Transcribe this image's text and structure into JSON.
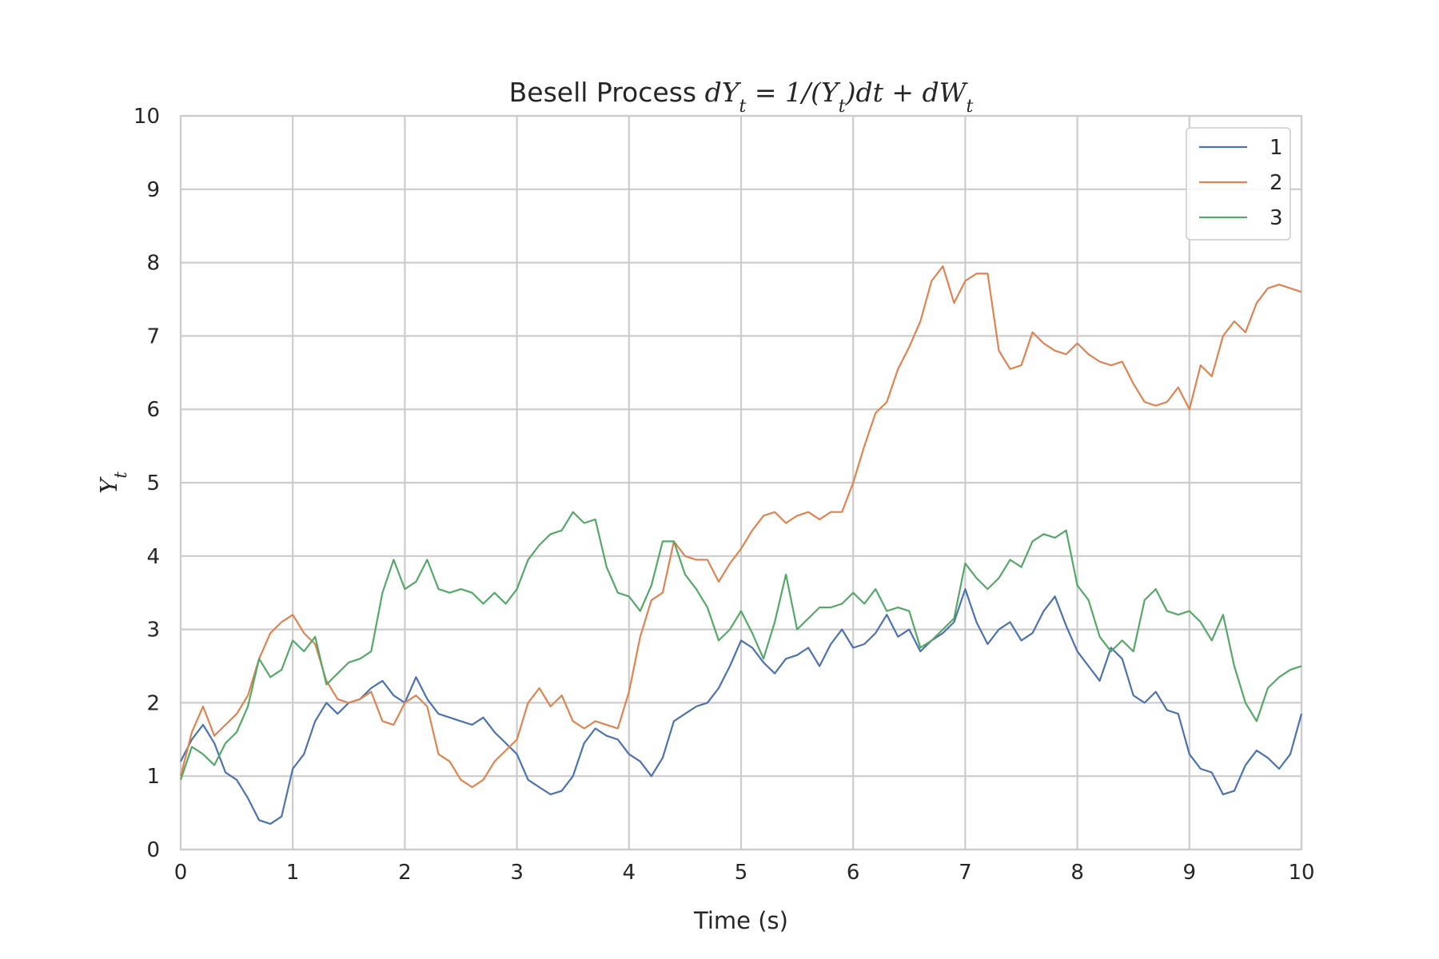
{
  "chart_data": {
    "type": "line",
    "title": {
      "plain": "Besell Process ",
      "math": "dY",
      "math_sub": "t",
      "math_rest": " = 1/(Y",
      "math_sub2": "t",
      "math_rest2": ")dt + dW",
      "math_sub3": "t"
    },
    "xlabel": "Time (s)",
    "ylabel": "Y",
    "ylabel_sub": "t",
    "xlim": [
      0,
      10
    ],
    "ylim": [
      0,
      10
    ],
    "xticks": [
      "0",
      "1",
      "2",
      "3",
      "4",
      "5",
      "6",
      "7",
      "8",
      "9",
      "10"
    ],
    "yticks": [
      "0",
      "1",
      "2",
      "3",
      "4",
      "5",
      "6",
      "7",
      "8",
      "9",
      "10"
    ],
    "grid": true,
    "legend_position": "top-right",
    "series": [
      {
        "name": "1",
        "color": "#4c72b0",
        "x": [
          0,
          0.1,
          0.2,
          0.3,
          0.4,
          0.5,
          0.6,
          0.7,
          0.8,
          0.9,
          1.0,
          1.1,
          1.2,
          1.3,
          1.4,
          1.5,
          1.6,
          1.7,
          1.8,
          1.9,
          2.0,
          2.1,
          2.2,
          2.3,
          2.4,
          2.5,
          2.6,
          2.7,
          2.8,
          2.9,
          3.0,
          3.1,
          3.2,
          3.3,
          3.4,
          3.5,
          3.6,
          3.7,
          3.8,
          3.9,
          4.0,
          4.1,
          4.2,
          4.3,
          4.4,
          4.5,
          4.6,
          4.7,
          4.8,
          4.9,
          5.0,
          5.1,
          5.2,
          5.3,
          5.4,
          5.5,
          5.6,
          5.7,
          5.8,
          5.9,
          6.0,
          6.1,
          6.2,
          6.3,
          6.4,
          6.5,
          6.6,
          6.7,
          6.8,
          6.9,
          7.0,
          7.1,
          7.2,
          7.3,
          7.4,
          7.5,
          7.6,
          7.7,
          7.8,
          7.9,
          8.0,
          8.1,
          8.2,
          8.3,
          8.4,
          8.5,
          8.6,
          8.7,
          8.8,
          8.9,
          9.0,
          9.1,
          9.2,
          9.3,
          9.4,
          9.5,
          9.6,
          9.7,
          9.8,
          9.9,
          10.0
        ],
        "y": [
          1.2,
          1.5,
          1.7,
          1.45,
          1.05,
          0.95,
          0.7,
          0.4,
          0.35,
          0.45,
          1.1,
          1.3,
          1.75,
          2.0,
          1.85,
          2.0,
          2.05,
          2.2,
          2.3,
          2.1,
          2.0,
          2.35,
          2.05,
          1.85,
          1.8,
          1.75,
          1.7,
          1.8,
          1.6,
          1.45,
          1.3,
          0.95,
          0.85,
          0.75,
          0.8,
          1.0,
          1.45,
          1.65,
          1.55,
          1.5,
          1.3,
          1.2,
          1.0,
          1.25,
          1.75,
          1.85,
          1.95,
          2.0,
          2.2,
          2.5,
          2.85,
          2.75,
          2.55,
          2.4,
          2.6,
          2.65,
          2.75,
          2.5,
          2.8,
          3.0,
          2.75,
          2.8,
          2.95,
          3.2,
          2.9,
          3.0,
          2.7,
          2.85,
          2.95,
          3.1,
          3.55,
          3.1,
          2.8,
          3.0,
          3.1,
          2.85,
          2.95,
          3.25,
          3.45,
          3.05,
          2.7,
          2.5,
          2.3,
          2.75,
          2.6,
          2.1,
          2.0,
          2.15,
          1.9,
          1.85,
          1.3,
          1.1,
          1.05,
          0.75,
          0.8,
          1.15,
          1.35,
          1.25,
          1.1,
          1.3,
          1.85
        ]
      },
      {
        "name": "2",
        "color": "#dd8452",
        "x": [
          0,
          0.1,
          0.2,
          0.3,
          0.4,
          0.5,
          0.6,
          0.7,
          0.8,
          0.9,
          1.0,
          1.1,
          1.2,
          1.3,
          1.4,
          1.5,
          1.6,
          1.7,
          1.8,
          1.9,
          2.0,
          2.1,
          2.2,
          2.3,
          2.4,
          2.5,
          2.6,
          2.7,
          2.8,
          2.9,
          3.0,
          3.1,
          3.2,
          3.3,
          3.4,
          3.5,
          3.6,
          3.7,
          3.8,
          3.9,
          4.0,
          4.1,
          4.2,
          4.3,
          4.4,
          4.5,
          4.6,
          4.7,
          4.8,
          4.9,
          5.0,
          5.1,
          5.2,
          5.3,
          5.4,
          5.5,
          5.6,
          5.7,
          5.8,
          5.9,
          6.0,
          6.1,
          6.2,
          6.3,
          6.4,
          6.5,
          6.6,
          6.7,
          6.8,
          6.9,
          7.0,
          7.1,
          7.2,
          7.3,
          7.4,
          7.5,
          7.6,
          7.7,
          7.8,
          7.9,
          8.0,
          8.1,
          8.2,
          8.3,
          8.4,
          8.5,
          8.6,
          8.7,
          8.8,
          8.9,
          9.0,
          9.1,
          9.2,
          9.3,
          9.4,
          9.5,
          9.6,
          9.7,
          9.8,
          9.9,
          10.0
        ],
        "y": [
          1.0,
          1.6,
          1.95,
          1.55,
          1.7,
          1.85,
          2.1,
          2.6,
          2.95,
          3.1,
          3.2,
          2.95,
          2.8,
          2.3,
          2.05,
          2.0,
          2.05,
          2.15,
          1.75,
          1.7,
          2.0,
          2.1,
          1.95,
          1.3,
          1.2,
          0.95,
          0.85,
          0.95,
          1.2,
          1.35,
          1.5,
          2.0,
          2.2,
          1.95,
          2.1,
          1.75,
          1.65,
          1.75,
          1.7,
          1.65,
          2.15,
          2.9,
          3.4,
          3.5,
          4.2,
          4.0,
          3.95,
          3.95,
          3.65,
          3.9,
          4.1,
          4.35,
          4.55,
          4.6,
          4.45,
          4.55,
          4.6,
          4.5,
          4.6,
          4.6,
          5.0,
          5.5,
          5.95,
          6.1,
          6.55,
          6.85,
          7.2,
          7.75,
          7.95,
          7.45,
          7.75,
          7.85,
          7.85,
          6.8,
          6.55,
          6.6,
          7.05,
          6.9,
          6.8,
          6.75,
          6.9,
          6.75,
          6.65,
          6.6,
          6.65,
          6.35,
          6.1,
          6.05,
          6.1,
          6.3,
          6.0,
          6.6,
          6.45,
          7.0,
          7.2,
          7.05,
          7.45,
          7.65,
          7.7,
          7.65,
          7.6
        ]
      },
      {
        "name": "3",
        "color": "#55a868",
        "x": [
          0,
          0.1,
          0.2,
          0.3,
          0.4,
          0.5,
          0.6,
          0.7,
          0.8,
          0.9,
          1.0,
          1.1,
          1.2,
          1.3,
          1.4,
          1.5,
          1.6,
          1.7,
          1.8,
          1.9,
          2.0,
          2.1,
          2.2,
          2.3,
          2.4,
          2.5,
          2.6,
          2.7,
          2.8,
          2.9,
          3.0,
          3.1,
          3.2,
          3.3,
          3.4,
          3.5,
          3.6,
          3.7,
          3.8,
          3.9,
          4.0,
          4.1,
          4.2,
          4.3,
          4.4,
          4.5,
          4.6,
          4.7,
          4.8,
          4.9,
          5.0,
          5.1,
          5.2,
          5.3,
          5.4,
          5.5,
          5.6,
          5.7,
          5.8,
          5.9,
          6.0,
          6.1,
          6.2,
          6.3,
          6.4,
          6.5,
          6.6,
          6.7,
          6.8,
          6.9,
          7.0,
          7.1,
          7.2,
          7.3,
          7.4,
          7.5,
          7.6,
          7.7,
          7.8,
          7.9,
          8.0,
          8.1,
          8.2,
          8.3,
          8.4,
          8.5,
          8.6,
          8.7,
          8.8,
          8.9,
          9.0,
          9.1,
          9.2,
          9.3,
          9.4,
          9.5,
          9.6,
          9.7,
          9.8,
          9.9,
          10.0
        ],
        "y": [
          0.95,
          1.4,
          1.3,
          1.15,
          1.45,
          1.6,
          1.95,
          2.6,
          2.35,
          2.45,
          2.85,
          2.7,
          2.9,
          2.25,
          2.4,
          2.55,
          2.6,
          2.7,
          3.5,
          3.95,
          3.55,
          3.65,
          3.95,
          3.55,
          3.5,
          3.55,
          3.5,
          3.35,
          3.5,
          3.35,
          3.55,
          3.95,
          4.15,
          4.3,
          4.35,
          4.6,
          4.45,
          4.5,
          3.85,
          3.5,
          3.45,
          3.25,
          3.6,
          4.2,
          4.2,
          3.75,
          3.55,
          3.3,
          2.85,
          3.0,
          3.25,
          2.95,
          2.6,
          3.1,
          3.75,
          3.0,
          3.15,
          3.3,
          3.3,
          3.35,
          3.5,
          3.35,
          3.55,
          3.25,
          3.3,
          3.25,
          2.75,
          2.85,
          3.0,
          3.15,
          3.9,
          3.7,
          3.55,
          3.7,
          3.95,
          3.85,
          4.2,
          4.3,
          4.25,
          4.35,
          3.6,
          3.4,
          2.9,
          2.7,
          2.85,
          2.7,
          3.4,
          3.55,
          3.25,
          3.2,
          3.25,
          3.1,
          2.85,
          3.2,
          2.5,
          2.0,
          1.75,
          2.2,
          2.35,
          2.45,
          2.5
        ]
      }
    ]
  }
}
